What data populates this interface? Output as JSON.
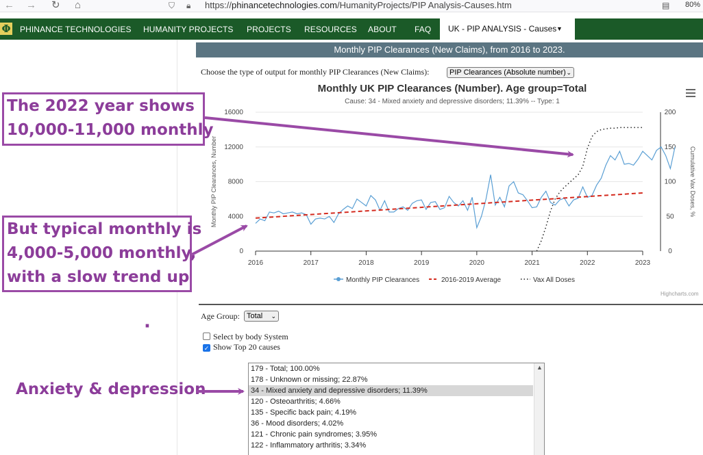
{
  "browser": {
    "back_icon": "arrow-left-icon",
    "forward_icon": "arrow-right-icon",
    "reload_icon": "reload-icon",
    "home_icon": "home-icon",
    "url_prefix": "https://",
    "url_host": "phinancetechnologies.com",
    "url_path": "/HumanityProjects/PIP Analysis-Causes.htm",
    "zoom": "80%"
  },
  "nav": {
    "logo": "Φ",
    "items": [
      "PHINANCE TECHNOLOGIES",
      "HUMANITY PROJECTS",
      "PROJECTS",
      "RESOURCES",
      "ABOUT",
      "FAQ"
    ],
    "active": "UK - PIP ANALYSIS - Causes",
    "active_caret": "▼",
    "color": "#1b5a28"
  },
  "banner": "Monthly PIP Clearances (New Claims), from 2016 to 2023.",
  "output_select": {
    "label": "Choose the type of output for monthly PIP Clearances (New Claims):",
    "value": "PIP Clearances (Absolute number)"
  },
  "chart_data": {
    "type": "line",
    "title": "Monthly UK PIP Clearances (Number). Age group=Total",
    "subtitle": "Cause: 34 - Mixed anxiety and depressive disorders; 11.39% -- Type: 1",
    "ylabel": "Monthly PIP Clearances, Number",
    "y2label": "Cumulative Vax Doses, %",
    "ylim": [
      0,
      16000
    ],
    "y2lim": [
      0,
      200
    ],
    "yticks": [
      "0",
      "4000",
      "8000",
      "12000",
      "16000"
    ],
    "y2ticks": [
      "0",
      "50",
      "100",
      "150",
      "200"
    ],
    "xticks": [
      "2016",
      "2017",
      "2018",
      "2019",
      "2020",
      "2021",
      "2022",
      "2023"
    ],
    "x_start": 2016,
    "x_step_months": 1,
    "series": [
      {
        "name": "Monthly PIP Clearances",
        "axis": "left",
        "color": "#5a9fd4",
        "style": "solid-markers",
        "values": [
          3200,
          3700,
          3500,
          4500,
          4400,
          4600,
          4300,
          4400,
          4500,
          4300,
          4400,
          4200,
          3100,
          3700,
          3800,
          3700,
          4000,
          3300,
          4300,
          4800,
          5200,
          4900,
          6000,
          5600,
          5200,
          6400,
          5900,
          4700,
          5800,
          4500,
          4500,
          4900,
          5100,
          4700,
          5500,
          5800,
          5900,
          4800,
          5600,
          5700,
          4800,
          5000,
          6300,
          5600,
          5200,
          5800,
          4700,
          6200,
          2700,
          4000,
          6000,
          8800,
          5300,
          6200,
          5100,
          7500,
          8000,
          6700,
          6500,
          5800,
          5000,
          5100,
          6200,
          6900,
          5600,
          5300,
          5900,
          6100,
          5200,
          5900,
          6100,
          7400,
          6200,
          6400,
          7600,
          8400,
          9900,
          11000,
          10500,
          11500,
          10000,
          10100,
          9900,
          10600,
          11500,
          11000,
          10500,
          11600,
          12000,
          11000,
          9500,
          12000
        ]
      },
      {
        "name": "2016-2019 Average",
        "axis": "left",
        "color": "#d42a1e",
        "style": "dashed",
        "line_points": [
          [
            0,
            3800
          ],
          [
            84,
            6700
          ]
        ]
      },
      {
        "name": "Vax All Doses",
        "axis": "right",
        "color": "#222222",
        "style": "dotted",
        "values": [
          [
            61,
            0
          ],
          [
            62,
            15
          ],
          [
            63,
            35
          ],
          [
            64,
            58
          ],
          [
            65,
            75
          ],
          [
            66,
            85
          ],
          [
            67,
            92
          ],
          [
            68,
            98
          ],
          [
            69,
            104
          ],
          [
            70,
            110
          ],
          [
            71,
            122
          ],
          [
            72,
            148
          ],
          [
            73,
            165
          ],
          [
            74,
            172
          ],
          [
            75,
            175
          ],
          [
            76,
            176
          ],
          [
            77,
            177
          ],
          [
            78,
            177
          ],
          [
            79,
            178
          ],
          [
            80,
            178
          ],
          [
            81,
            178
          ],
          [
            82,
            178
          ],
          [
            83,
            178
          ],
          [
            84,
            178
          ]
        ]
      }
    ],
    "legend": "bottom-center",
    "credit": "Highcharts.com"
  },
  "age_group": {
    "label": "Age Group:",
    "value": "Total"
  },
  "checkboxes": [
    {
      "label": "Select by body System",
      "checked": false
    },
    {
      "label": "Show Top 20 causes",
      "checked": true
    }
  ],
  "causes_list": [
    "179 - Total; 100.00%",
    "178 - Unknown or missing; 22.87%",
    "34 - Mixed anxiety and depressive disorders; 11.39%",
    "120 - Osteoarthritis; 4.66%",
    "135 - Specific back pain; 4.19%",
    "36 - Mood disorders; 4.02%",
    "121 - Chronic pain syndromes; 3.95%",
    "122 - Inflammatory arthritis; 3.34%"
  ],
  "causes_selected_index": 2,
  "annotations": {
    "box1": [
      "The 2022 year shows",
      "10,000-11,000 monthly"
    ],
    "box2": [
      "But typical monthly is",
      "4,000-5,000 monthly,",
      "with a slow trend up"
    ],
    "label3": "Anxiety & depression",
    "dot": "·",
    "color": "#8c3d9a"
  }
}
